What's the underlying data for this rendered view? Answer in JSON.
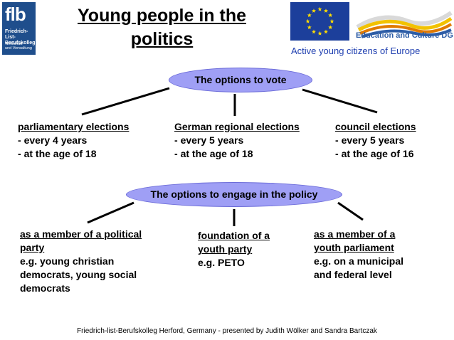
{
  "logo": {
    "short": "flb",
    "line1": "Friedrich-List-",
    "line2": "Berufskolleg",
    "line3": "Wirtschaft",
    "line4": "und Verwaltung"
  },
  "title": {
    "line1": "Young people in the",
    "line2": "politics"
  },
  "eac_logo_text": "Education and Culture DG",
  "tagline": "Active young citizens of Europe",
  "colors": {
    "oval_fill": "#9f9ff5",
    "flb_blue": "#1f4e8c",
    "eu_blue": "#1c3f9b",
    "eu_star": "#ffdd00",
    "tagline": "#1f3fb0"
  },
  "vote": {
    "label": "The options to vote",
    "columns": [
      {
        "heading": "parliamentary elections",
        "items": [
          "every 4 years",
          "at the age of 18"
        ]
      },
      {
        "heading": "German regional elections",
        "items": [
          "every 5 years",
          "at the age of 18"
        ]
      },
      {
        "heading": "council elections",
        "items": [
          "every 5 years",
          "at the age of 16"
        ]
      }
    ]
  },
  "engage": {
    "label": "The options to engage in the policy",
    "columns": [
      {
        "heading": [
          "as a member of a political",
          "party"
        ],
        "lines": [
          "e.g. young christian",
          "democrats, young social",
          "democrats"
        ]
      },
      {
        "heading": [
          "foundation of a",
          "youth party"
        ],
        "lines": [
          "e.g. PETO"
        ]
      },
      {
        "heading": [
          "as a member of a",
          "youth parliament"
        ],
        "lines": [
          "e.g. on a municipal",
          "and federal level"
        ]
      }
    ]
  },
  "footer": "Friedrich-list-Berufskolleg Herford, Germany - presented by Judith Wölker and Sandra Bartczak"
}
